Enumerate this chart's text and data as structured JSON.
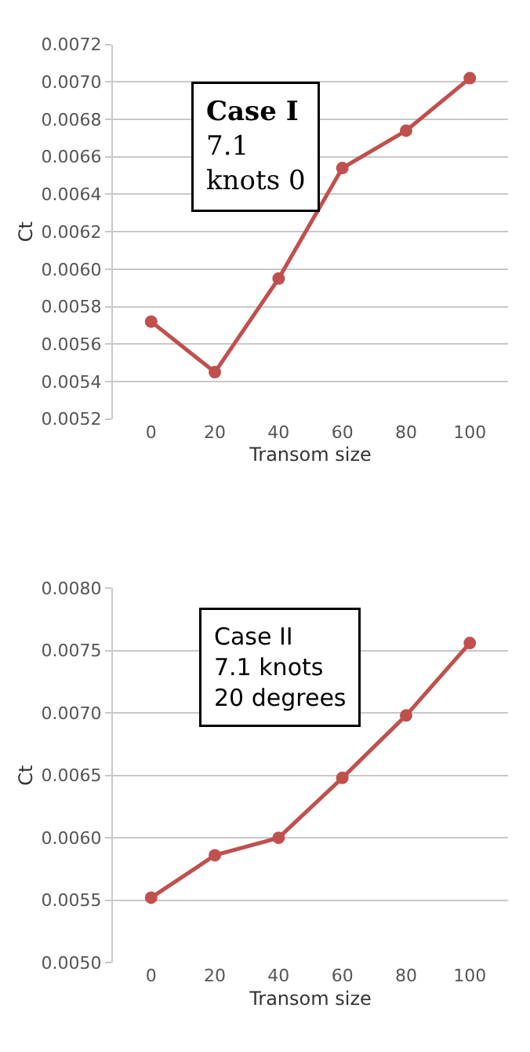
{
  "chart_data": [
    {
      "type": "line",
      "xlabel": "Transom size",
      "ylabel": "Ct",
      "categories": [
        "0",
        "20",
        "40",
        "60",
        "80",
        "100"
      ],
      "series": [
        {
          "color": "#c0504d",
          "values": [
            0.00572,
            0.00545,
            0.00595,
            0.00654,
            0.00674,
            0.00702
          ]
        }
      ],
      "ylim": [
        0.0052,
        0.0072
      ],
      "yticks": [
        0.0052,
        0.0054,
        0.0056,
        0.0058,
        {
          "value": 0.006,
          "label": "0.0060"
        },
        0.0062,
        0.0064,
        0.0066,
        0.0068,
        {
          "value": 0.007,
          "label": "0.0070"
        },
        0.0072
      ],
      "grid": "y",
      "marker": "circle",
      "line_style": "solid",
      "annotations": [
        "Case I\n7.1\nknots 0"
      ]
    },
    {
      "type": "line",
      "xlabel": "Transom size",
      "ylabel": "Ct",
      "categories": [
        "0",
        "20",
        "40",
        "60",
        "80",
        "100"
      ],
      "series": [
        {
          "color": "#c0504d",
          "values": [
            0.00552,
            0.00586,
            0.006,
            0.00648,
            0.00698,
            0.00756
          ]
        }
      ],
      "ylim": [
        0.005,
        0.008
      ],
      "yticks": [
        {
          "value": 0.005,
          "label": "0.0050"
        },
        0.0055,
        {
          "value": 0.006,
          "label": "0.0060"
        },
        0.0065,
        {
          "value": 0.007,
          "label": "0.0070"
        },
        0.0075,
        {
          "value": 0.008,
          "label": "0.0080"
        }
      ],
      "grid": "y",
      "marker": "circle",
      "line_style": "solid",
      "annotations": [
        "Case II\n7.1 knots\n20 degrees"
      ]
    }
  ]
}
